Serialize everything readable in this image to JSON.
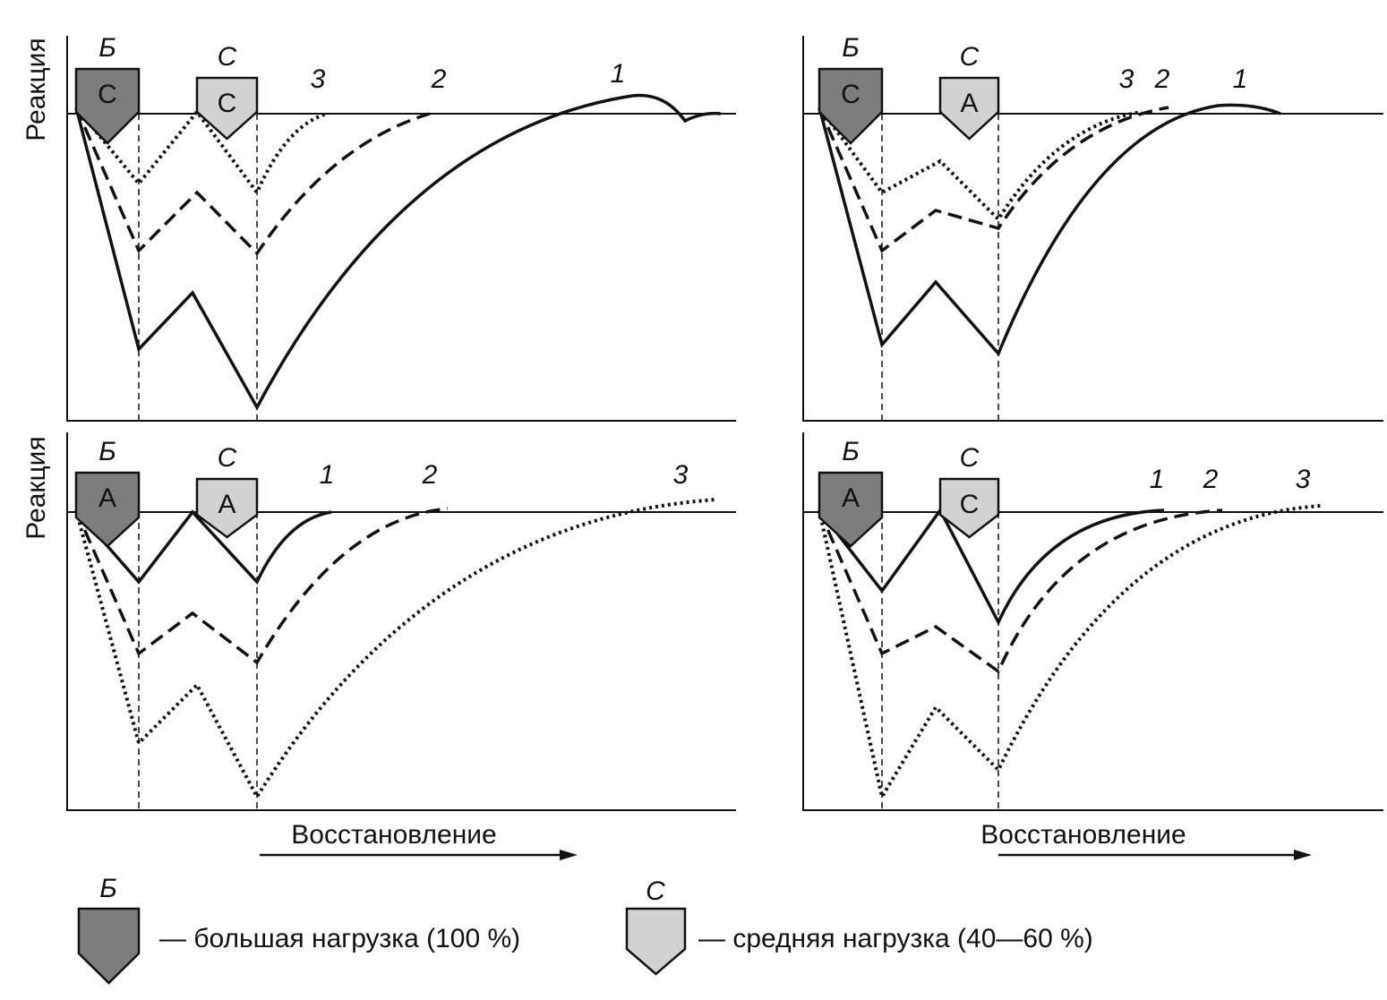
{
  "panels": [
    {
      "y_label": "Реакция",
      "markers": [
        {
          "label": "Б",
          "code": "С"
        },
        {
          "label": "С",
          "code": "С"
        }
      ],
      "curve_labels": [
        "3",
        "2",
        "1"
      ]
    },
    {
      "markers": [
        {
          "label": "Б",
          "code": "С"
        },
        {
          "label": "С",
          "code": "А"
        }
      ],
      "curve_labels": [
        "3",
        "2",
        "1"
      ]
    },
    {
      "y_label": "Реакция",
      "markers": [
        {
          "label": "Б",
          "code": "А"
        },
        {
          "label": "С",
          "code": "А"
        }
      ],
      "curve_labels": [
        "1",
        "2",
        "3"
      ]
    },
    {
      "markers": [
        {
          "label": "Б",
          "code": "А"
        },
        {
          "label": "С",
          "code": "С"
        }
      ],
      "curve_labels": [
        "1",
        "2",
        "3"
      ]
    }
  ],
  "x_labels": [
    "Восстановление",
    "Восстановление"
  ],
  "legend": [
    {
      "marker": "Б",
      "text": "— большая нагрузка (100 %)"
    },
    {
      "marker": "С",
      "text": "— средняя нагрузка (40—60 %)"
    }
  ]
}
